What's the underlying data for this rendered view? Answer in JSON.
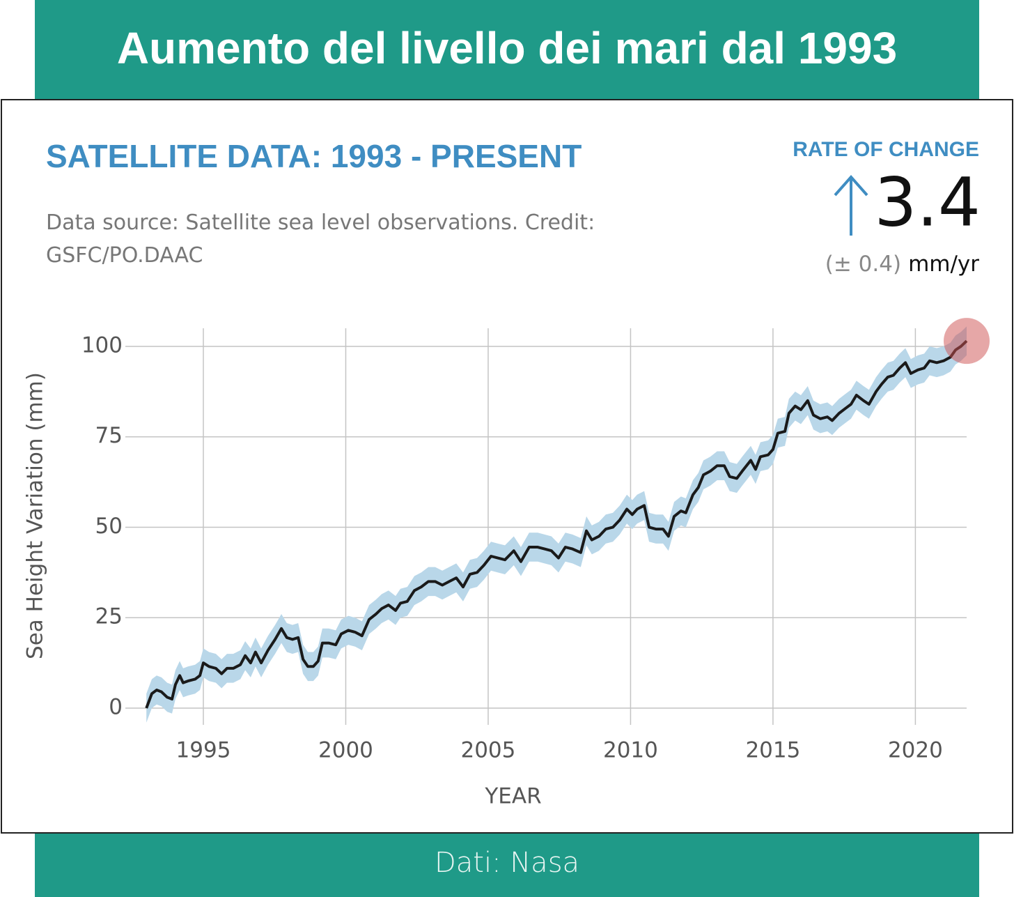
{
  "banner_title": "Aumento del livello dei mari dal 1993",
  "footer": "Dati: Nasa",
  "chart_data": {
    "type": "line",
    "title": "SATELLITE DATA: 1993 - PRESENT",
    "subtitle": "Data source: Satellite sea level observations. Credit: GSFC/PO.DAAC",
    "rate": {
      "label": "RATE OF CHANGE",
      "value": 3.4,
      "uncertainty": "(± 0.4)",
      "unit": "mm/yr"
    },
    "x_label": "YEAR",
    "y_label": "Sea Height Variation (mm)",
    "xlim": [
      1992.5,
      2021.8
    ],
    "ylim": [
      0,
      105
    ],
    "xticks": [
      1995,
      2000,
      2005,
      2010,
      2015,
      2020
    ],
    "yticks": [
      0,
      25,
      50,
      75,
      100
    ],
    "grid": true,
    "band_color": "#b9d7e9",
    "x": [
      1993.0,
      1993.19,
      1993.36,
      1993.53,
      1993.73,
      1993.9,
      1994.02,
      1994.17,
      1994.29,
      1994.46,
      1994.71,
      1994.88,
      1995.0,
      1995.2,
      1995.44,
      1995.64,
      1995.83,
      1996.05,
      1996.3,
      1996.47,
      1996.66,
      1996.83,
      1997.03,
      1997.27,
      1997.52,
      1997.74,
      1997.93,
      1998.13,
      1998.33,
      1998.5,
      1998.67,
      1998.86,
      1999.03,
      1999.18,
      1999.4,
      1999.65,
      1999.84,
      2000.09,
      2000.33,
      2000.57,
      2000.82,
      2001.06,
      2001.26,
      2001.5,
      2001.75,
      2001.92,
      2002.16,
      2002.41,
      2002.65,
      2002.9,
      2003.14,
      2003.39,
      2003.63,
      2003.88,
      2004.12,
      2004.36,
      2004.61,
      2004.85,
      2005.1,
      2005.34,
      2005.59,
      2005.9,
      2006.15,
      2006.44,
      2006.74,
      2006.98,
      2007.22,
      2007.47,
      2007.71,
      2007.96,
      2008.25,
      2008.45,
      2008.64,
      2008.89,
      2009.13,
      2009.38,
      2009.62,
      2009.87,
      2010.06,
      2010.23,
      2010.48,
      2010.65,
      2010.89,
      2011.14,
      2011.33,
      2011.53,
      2011.77,
      2011.94,
      2012.19,
      2012.38,
      2012.56,
      2012.8,
      2013.04,
      2013.29,
      2013.48,
      2013.73,
      2013.92,
      2014.22,
      2014.39,
      2014.56,
      2014.83,
      2015.0,
      2015.17,
      2015.42,
      2015.56,
      2015.78,
      2015.98,
      2016.22,
      2016.42,
      2016.66,
      2016.91,
      2017.08,
      2017.32,
      2017.57,
      2017.74,
      2017.93,
      2018.18,
      2018.37,
      2018.62,
      2018.81,
      2019.03,
      2019.23,
      2019.45,
      2019.65,
      2019.84,
      2020.09,
      2020.31,
      2020.5,
      2020.75,
      2020.99,
      2021.23,
      2021.41,
      2021.6,
      2021.8
    ],
    "series": [
      {
        "color": "#1a1a1a",
        "error": 4,
        "values": [
          0,
          4,
          5,
          4.5,
          3,
          2.5,
          6.5,
          9,
          7,
          7.5,
          8,
          9,
          12.5,
          11.5,
          11,
          9.5,
          11,
          11,
          12,
          14.5,
          12.5,
          15.5,
          12.5,
          16,
          19,
          22,
          19.5,
          19,
          19.5,
          13.5,
          11.5,
          11.5,
          13,
          18,
          18,
          17.5,
          20.5,
          21.5,
          21,
          20,
          24.5,
          26,
          27.5,
          28.5,
          27,
          29,
          29.5,
          32.5,
          33.5,
          35,
          35,
          34,
          35,
          36,
          33.5,
          37,
          37.5,
          39.5,
          42,
          41.5,
          41,
          43.5,
          40.5,
          44.5,
          44.5,
          44,
          43.5,
          41.5,
          44.5,
          44,
          43,
          49,
          46.5,
          47.5,
          49.5,
          50,
          52,
          55,
          53.5,
          55,
          56,
          50,
          49.5,
          49.5,
          47.5,
          53,
          54.5,
          54,
          59,
          61,
          64.5,
          65.5,
          67,
          67,
          64,
          63.5,
          65.5,
          68.5,
          66,
          69.5,
          70,
          71.5,
          76,
          76.5,
          81.5,
          83.5,
          82.5,
          85,
          81,
          80,
          80.5,
          79.5,
          81.5,
          83,
          84,
          86.5,
          85,
          84,
          87.5,
          89.5,
          91.5,
          92,
          94,
          95.5,
          92.5,
          93.5,
          94,
          96,
          95.5,
          96,
          97,
          99,
          100,
          101.5
        ]
      }
    ]
  }
}
